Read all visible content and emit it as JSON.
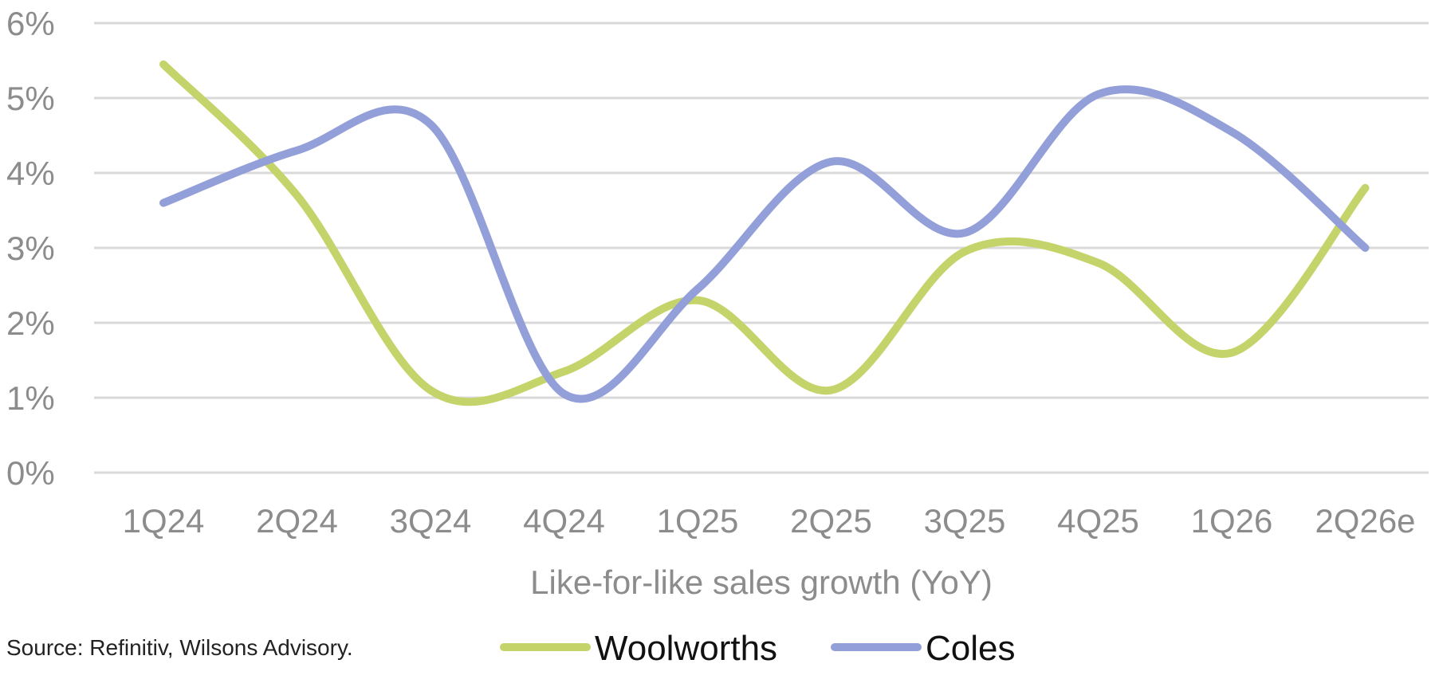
{
  "chart_data": {
    "type": "line",
    "categories": [
      "1Q24",
      "2Q24",
      "3Q24",
      "4Q24",
      "1Q25",
      "2Q25",
      "3Q25",
      "4Q25",
      "1Q26",
      "2Q26e"
    ],
    "series": [
      {
        "name": "Woolworths",
        "color": "#c5d46a",
        "values": [
          5.45,
          3.7,
          1.1,
          1.35,
          2.3,
          1.1,
          2.95,
          2.8,
          1.6,
          3.8
        ]
      },
      {
        "name": "Coles",
        "color": "#939fd8",
        "values": [
          3.6,
          4.3,
          4.65,
          1.05,
          2.45,
          4.15,
          3.2,
          5.05,
          4.55,
          3.0
        ]
      }
    ],
    "title": "",
    "xlabel": "Like-for-like sales growth (YoY)",
    "ylabel": "",
    "ylim": [
      0,
      6
    ],
    "yticks": [
      "0%",
      "1%",
      "2%",
      "3%",
      "4%",
      "5%",
      "6%"
    ],
    "grid": true,
    "legend_position": "bottom"
  },
  "source_note": "Source: Refinitiv, Wilsons Advisory."
}
